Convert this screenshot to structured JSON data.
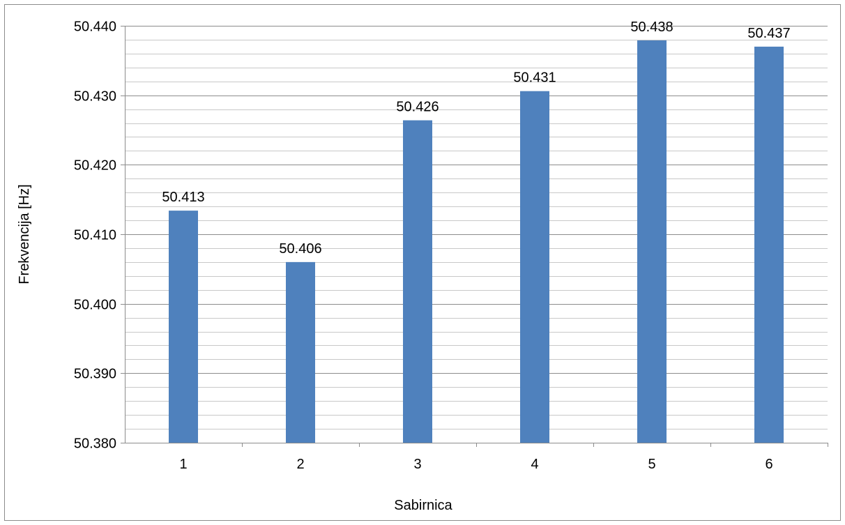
{
  "chart_data": {
    "type": "bar",
    "title": "",
    "xlabel": "Sabirnica",
    "ylabel": "Frekvencija  [Hz]",
    "categories": [
      "1",
      "2",
      "3",
      "4",
      "5",
      "6"
    ],
    "values": [
      50.4134,
      50.406,
      50.4264,
      50.4306,
      50.4379,
      50.437
    ],
    "data_labels": [
      "50.413",
      "50.406",
      "50.426",
      "50.431",
      "50.438",
      "50.437"
    ],
    "ylim": [
      50.38,
      50.44
    ],
    "yticks": [
      "50.380",
      "50.390",
      "50.400",
      "50.410",
      "50.420",
      "50.430",
      "50.440"
    ],
    "major_step": 0.01,
    "minor_step": 0.002,
    "grid": true,
    "legend": "none",
    "colors": {
      "bar": "#4f81bd",
      "major_grid": "#8c8c8c",
      "minor_grid": "#c8c8c8",
      "axis": "#8c8c8c",
      "frame": "#8c8c8c"
    }
  }
}
